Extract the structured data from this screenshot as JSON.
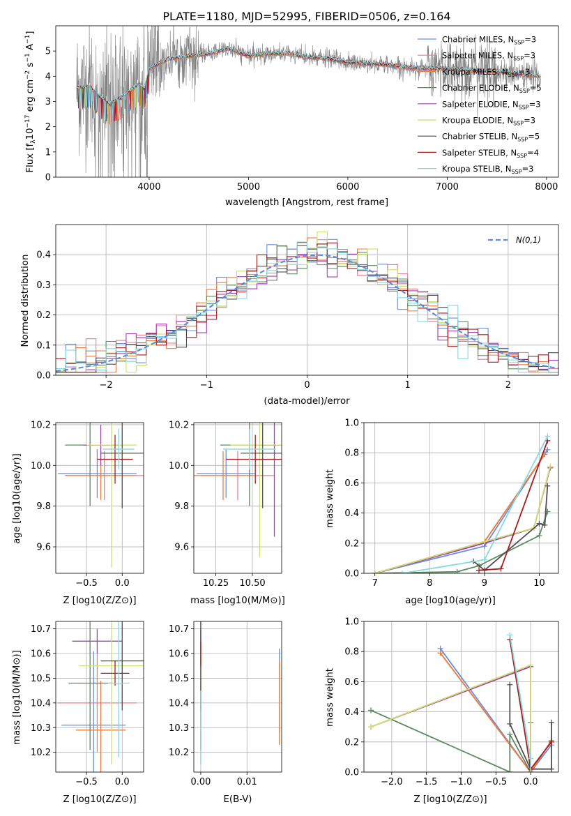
{
  "colors": {
    "Chabrier MILES": "#6a8ed6",
    "Salpeter MILES": "#e87e8f",
    "Kroupa MILES": "#ee7d3c",
    "Chabrier ELODIE": "#5b8a5e",
    "Salpeter ELODIE": "#a23fb5",
    "Kroupa ELODIE": "#cfe06a",
    "Chabrier STELIB": "#4f4f4f",
    "Salpeter STELIB": "#a51d1d",
    "Kroupa STELIB": "#86d9de",
    "data": "#7f7f7f",
    "gaussian": "#5b8ed8"
  },
  "chart_data": [
    {
      "id": "spectrum",
      "type": "line",
      "title": "PLATE=1180, MJD=52995, FIBERID=0506, z=0.164",
      "xlabel": "wavelength [Angstrom, rest frame]",
      "ylabel_pre": "Flux [f",
      "ylabel_sub": "λ",
      "ylabel_mid": "10",
      "ylabel_sup1": "−17",
      "ylabel_post1": " erg cm",
      "ylabel_sup2": "−2",
      "ylabel_post2": " s",
      "ylabel_sup3": "−1",
      "ylabel_post3": " A",
      "ylabel_sup4": "−1",
      "ylabel_end": "]",
      "xlim": [
        3060,
        8120
      ],
      "ylim": [
        0,
        6.0
      ],
      "xticks": [
        4000,
        5000,
        6000,
        7000,
        8000
      ],
      "yticks": [
        0,
        1,
        2,
        3,
        4,
        5
      ],
      "data_series_x_range": [
        3270,
        7940
      ],
      "legend": [
        {
          "pre": "Chabrier MILES, N",
          "sub": "SSP",
          "post": "=3"
        },
        {
          "pre": "Salpeter MILES, N",
          "sub": "SSP",
          "post": "=3"
        },
        {
          "pre": "Kroupa MILES, N",
          "sub": "SSP",
          "post": "=3"
        },
        {
          "pre": "Chabrier ELODIE, N",
          "sub": "SSP",
          "post": "=5"
        },
        {
          "pre": "Salpeter ELODIE, N",
          "sub": "SSP",
          "post": "=3"
        },
        {
          "pre": "Kroupa ELODIE, N",
          "sub": "SSP",
          "post": "=3"
        },
        {
          "pre": "Chabrier STELIB, N",
          "sub": "SSP",
          "post": "=5"
        },
        {
          "pre": "Salpeter STELIB, N",
          "sub": "SSP",
          "post": "=4"
        },
        {
          "pre": "Kroupa STELIB, N",
          "sub": "SSP",
          "post": "=3"
        }
      ],
      "legend_position": "right",
      "model_continuum": {
        "x": [
          3270,
          3400,
          3500,
          3600,
          3700,
          3800,
          3900,
          3950,
          4000,
          4100,
          4200,
          4400,
          4600,
          4800,
          5000,
          5200,
          5400,
          5600,
          5800,
          6000,
          6200,
          6400,
          6600,
          6800,
          7000,
          7200,
          7400,
          7600,
          7800,
          7940
        ],
        "y": [
          3.5,
          3.6,
          3.2,
          2.9,
          3.1,
          3.4,
          3.7,
          3.5,
          4.3,
          4.5,
          4.7,
          4.8,
          4.9,
          5.1,
          4.8,
          4.9,
          4.9,
          4.75,
          4.7,
          4.55,
          4.5,
          4.45,
          4.35,
          4.3,
          4.3,
          4.25,
          4.2,
          4.15,
          4.05,
          4.0
        ]
      }
    },
    {
      "id": "residuals",
      "type": "line",
      "xlabel": "(data-model)/error",
      "ylabel": "Normed distribution",
      "xlim": [
        -2.5,
        2.5
      ],
      "ylim": [
        0,
        0.5
      ],
      "xticks": [
        -2,
        -1,
        0,
        1,
        2
      ],
      "yticks": [
        0.0,
        0.1,
        0.2,
        0.3,
        0.4
      ],
      "legend": [
        "N(0,1)"
      ],
      "legend_position": "top-right",
      "grid": true,
      "hist_bins": [
        -2.5,
        2.5,
        50
      ]
    },
    {
      "id": "age-vs-Z",
      "type": "scatter",
      "xlabel": "Z [log10(Z/Z⊙)]",
      "ylabel": "age [log10(age/yr)]",
      "xlim": [
        -0.93,
        0.3
      ],
      "ylim": [
        9.47,
        10.21
      ],
      "xticks": [
        -0.5,
        0.0
      ],
      "yticks": [
        9.6,
        9.8,
        10.0,
        10.2
      ],
      "grid": true,
      "points": [
        {
          "model": "Chabrier MILES",
          "x": -0.35,
          "y": 9.96,
          "xerr": 0.55,
          "yerr": 0.12
        },
        {
          "model": "Salpeter MILES",
          "x": -0.25,
          "y": 9.95,
          "xerr": 0.55,
          "yerr": 0.12
        },
        {
          "model": "Kroupa MILES",
          "x": -0.3,
          "y": 9.95,
          "xerr": 0.5,
          "yerr": 0.12
        },
        {
          "model": "Chabrier ELODIE",
          "x": -0.45,
          "y": 10.1,
          "xerr": 0.35,
          "yerr": 0.3
        },
        {
          "model": "Salpeter ELODIE",
          "x": -0.3,
          "y": 10.1,
          "xerr": 0.25,
          "yerr": 0.1
        },
        {
          "model": "Kroupa ELODIE",
          "x": -0.15,
          "y": 10.1,
          "xerr": 0.35,
          "yerr": 0.6
        },
        {
          "model": "Chabrier STELIB",
          "x": 0.0,
          "y": 10.06,
          "xerr": 0.3,
          "yerr": 0.27
        },
        {
          "model": "Salpeter STELIB",
          "x": -0.1,
          "y": 10.03,
          "xerr": 0.25,
          "yerr": 0.12
        },
        {
          "model": "Kroupa STELIB",
          "x": -0.05,
          "y": 10.08,
          "xerr": 0.22,
          "yerr": 0.1
        }
      ]
    },
    {
      "id": "age-vs-mass",
      "type": "scatter",
      "xlabel": "mass [log10(M/M⊙)]",
      "ylabel": "",
      "xlim": [
        10.1,
        10.7
      ],
      "ylim": [
        9.47,
        10.21
      ],
      "xticks": [
        10.25,
        10.5
      ],
      "yticks": [
        9.6,
        9.8,
        10.0,
        10.2
      ],
      "grid": true,
      "points": [
        {
          "model": "Chabrier MILES",
          "x": 10.32,
          "y": 9.96,
          "xerr": 0.2,
          "yerr": 0.12
        },
        {
          "model": "Salpeter MILES",
          "x": 10.4,
          "y": 9.95,
          "xerr": 0.25,
          "yerr": 0.12
        },
        {
          "model": "Kroupa MILES",
          "x": 10.3,
          "y": 9.95,
          "xerr": 0.2,
          "yerr": 0.12
        },
        {
          "model": "Chabrier ELODIE",
          "x": 10.48,
          "y": 10.1,
          "xerr": 0.2,
          "yerr": 0.3
        },
        {
          "model": "Salpeter ELODIE",
          "x": 10.65,
          "y": 10.1,
          "xerr": 0.1,
          "yerr": 0.45
        },
        {
          "model": "Kroupa ELODIE",
          "x": 10.55,
          "y": 10.1,
          "xerr": 0.2,
          "yerr": 0.55
        },
        {
          "model": "Chabrier STELIB",
          "x": 10.57,
          "y": 10.06,
          "xerr": 0.15,
          "yerr": 0.27
        },
        {
          "model": "Salpeter STELIB",
          "x": 10.52,
          "y": 10.03,
          "xerr": 0.2,
          "yerr": 0.12
        },
        {
          "model": "Kroupa STELIB",
          "x": 10.48,
          "y": 10.08,
          "xerr": 0.18,
          "yerr": 0.1
        }
      ]
    },
    {
      "id": "massweight-vs-age",
      "type": "line",
      "xlabel": "age [log10(age/yr)]",
      "ylabel": "mass weight",
      "xlim": [
        6.8,
        10.35
      ],
      "ylim": [
        0,
        1.0
      ],
      "xticks": [
        7,
        8,
        9,
        10
      ],
      "yticks": [
        0.0,
        0.2,
        0.4,
        0.6,
        0.8,
        1.0
      ],
      "grid": true,
      "series": [
        {
          "model": "Chabrier MILES",
          "x": [
            7.0,
            9.0,
            10.15
          ],
          "y": [
            0.0,
            0.18,
            0.82
          ]
        },
        {
          "model": "Salpeter MILES",
          "x": [
            7.0,
            9.0,
            10.1
          ],
          "y": [
            0.0,
            0.21,
            0.79
          ]
        },
        {
          "model": "Kroupa MILES",
          "x": [
            7.0,
            9.0,
            10.1
          ],
          "y": [
            0.0,
            0.21,
            0.79
          ]
        },
        {
          "model": "Chabrier ELODIE",
          "x": [
            7.0,
            8.5,
            8.9,
            10.0,
            10.15
          ],
          "y": [
            0.0,
            0.01,
            0.05,
            0.25,
            0.41
          ]
        },
        {
          "model": "Salpeter ELODIE",
          "x": [
            7.0,
            9.0,
            9.9,
            10.2
          ],
          "y": [
            0.0,
            0.2,
            0.3,
            0.7
          ]
        },
        {
          "model": "Kroupa ELODIE",
          "x": [
            7.0,
            9.0,
            9.9,
            10.2
          ],
          "y": [
            0.0,
            0.21,
            0.3,
            0.71
          ]
        },
        {
          "model": "Chabrier STELIB",
          "x": [
            8.8,
            9.0,
            10.0,
            10.1,
            10.15
          ],
          "y": [
            0.08,
            0.02,
            0.33,
            0.32,
            0.58
          ]
        },
        {
          "model": "Salpeter STELIB",
          "x": [
            8.9,
            9.3,
            10.15
          ],
          "y": [
            0.02,
            0.03,
            0.88
          ]
        },
        {
          "model": "Kroupa STELIB",
          "x": [
            7.5,
            9.0,
            10.15
          ],
          "y": [
            0.0,
            0.09,
            0.91
          ]
        }
      ]
    },
    {
      "id": "mass-vs-Z",
      "type": "scatter",
      "xlabel": "Z [log10(Z/Z⊙)]",
      "ylabel": "mass [log10(M/M⊙)]",
      "xlim": [
        -0.93,
        0.3
      ],
      "ylim": [
        10.12,
        10.73
      ],
      "xticks": [
        -0.5,
        0.0
      ],
      "yticks": [
        10.2,
        10.3,
        10.4,
        10.5,
        10.6,
        10.7
      ],
      "grid": true,
      "points": [
        {
          "model": "Chabrier MILES",
          "x": -0.4,
          "y": 10.31,
          "xerr": 0.45,
          "yerr": 0.3
        },
        {
          "model": "Salpeter MILES",
          "x": -0.35,
          "y": 10.4,
          "xerr": 0.55,
          "yerr": 0.2
        },
        {
          "model": "Kroupa MILES",
          "x": -0.3,
          "y": 10.29,
          "xerr": 0.35,
          "yerr": 0.2
        },
        {
          "model": "Chabrier ELODIE",
          "x": -0.45,
          "y": 10.48,
          "xerr": 0.3,
          "yerr": 0.27
        },
        {
          "model": "Salpeter ELODIE",
          "x": -0.35,
          "y": 10.65,
          "xerr": 0.35,
          "yerr": 0.05
        },
        {
          "model": "Kroupa ELODIE",
          "x": -0.15,
          "y": 10.55,
          "xerr": 0.45,
          "yerr": 0.4
        },
        {
          "model": "Chabrier STELIB",
          "x": 0.0,
          "y": 10.57,
          "xerr": 0.3,
          "yerr": 0.2
        },
        {
          "model": "Salpeter STELIB",
          "x": -0.1,
          "y": 10.52,
          "xerr": 0.2,
          "yerr": 0.05
        },
        {
          "model": "Kroupa STELIB",
          "x": -0.05,
          "y": 10.48,
          "xerr": 0.15,
          "yerr": 0.3
        }
      ]
    },
    {
      "id": "mass-vs-EBV",
      "type": "scatter",
      "xlabel": "E(B-V)",
      "ylabel": "",
      "xlim": [
        -0.0015,
        0.0175
      ],
      "ylim": [
        10.12,
        10.73
      ],
      "xticks": [
        0.0,
        0.01
      ],
      "xticklabels": [
        "0.00",
        "0.01"
      ],
      "yticks": [
        10.2,
        10.3,
        10.4,
        10.5,
        10.6,
        10.7
      ],
      "grid": true,
      "points": [
        {
          "model": "Chabrier MILES",
          "x": 0.017,
          "y": 10.45,
          "yerr": 0.17
        },
        {
          "model": "Salpeter MILES",
          "x": 0.0,
          "y": 10.4,
          "yerr": 0.2
        },
        {
          "model": "Kroupa MILES",
          "x": 0.017,
          "y": 10.4,
          "yerr": 0.17
        },
        {
          "model": "Chabrier ELODIE",
          "x": 0.0,
          "y": 10.48,
          "yerr": 0.27
        },
        {
          "model": "Salpeter ELODIE",
          "x": 0.0,
          "y": 10.65,
          "yerr": 0.05
        },
        {
          "model": "Kroupa ELODIE",
          "x": 0.0,
          "y": 10.4,
          "yerr": 0.25
        },
        {
          "model": "Chabrier STELIB",
          "x": 0.0,
          "y": 10.57,
          "yerr": 0.2
        },
        {
          "model": "Salpeter STELIB",
          "x": 0.0,
          "y": 10.6,
          "yerr": 0.05
        },
        {
          "model": "Kroupa STELIB",
          "x": 0.0,
          "y": 10.3,
          "yerr": 0.15
        }
      ]
    },
    {
      "id": "massweight-vs-Z",
      "type": "line",
      "xlabel": "Z [log10(Z/Z⊙)]",
      "ylabel": "mass weight",
      "xlim": [
        -2.4,
        0.4
      ],
      "ylim": [
        0,
        1.0
      ],
      "xticks": [
        -2.0,
        -1.5,
        -1.0,
        -0.5,
        0.0
      ],
      "xticklabels": [
        "−2.0",
        "−1.5",
        "−1.0",
        "−0.5",
        "0.0"
      ],
      "yticks": [
        0.0,
        0.2,
        0.4,
        0.6,
        0.8,
        1.0
      ],
      "grid": true,
      "series": [
        {
          "model": "Chabrier MILES",
          "x": [
            -1.3,
            0.0,
            0.3
          ],
          "y": [
            0.82,
            0.0,
            0.18
          ]
        },
        {
          "model": "Salpeter MILES",
          "x": [
            -1.3,
            0.0,
            0.3
          ],
          "y": [
            0.79,
            0.0,
            0.21
          ]
        },
        {
          "model": "Kroupa MILES",
          "x": [
            -1.3,
            0.0,
            0.3
          ],
          "y": [
            0.79,
            0.0,
            0.21
          ]
        },
        {
          "model": "Chabrier ELODIE",
          "x": [
            -2.3,
            -0.3,
            -0.3,
            0.0,
            0.0
          ],
          "y": [
            0.41,
            0.0,
            0.25,
            0.0,
            0.33
          ]
        },
        {
          "model": "Salpeter ELODIE",
          "x": [
            -2.3,
            0.0,
            0.0
          ],
          "y": [
            0.3,
            0.7,
            0.0
          ]
        },
        {
          "model": "Kroupa ELODIE",
          "x": [
            -2.3,
            0.0,
            0.0
          ],
          "y": [
            0.3,
            0.71,
            0.0
          ]
        },
        {
          "model": "Chabrier STELIB",
          "x": [
            -0.3,
            -0.3,
            0.0,
            0.3,
            0.3
          ],
          "y": [
            0.58,
            0.32,
            0.02,
            0.02,
            0.33
          ]
        },
        {
          "model": "Salpeter STELIB",
          "x": [
            -0.3,
            0.0,
            0.3
          ],
          "y": [
            0.88,
            0.02,
            0.2
          ]
        },
        {
          "model": "Kroupa STELIB",
          "x": [
            -0.3,
            0.0,
            0.0
          ],
          "y": [
            0.91,
            0.09,
            0.0
          ]
        }
      ]
    }
  ]
}
